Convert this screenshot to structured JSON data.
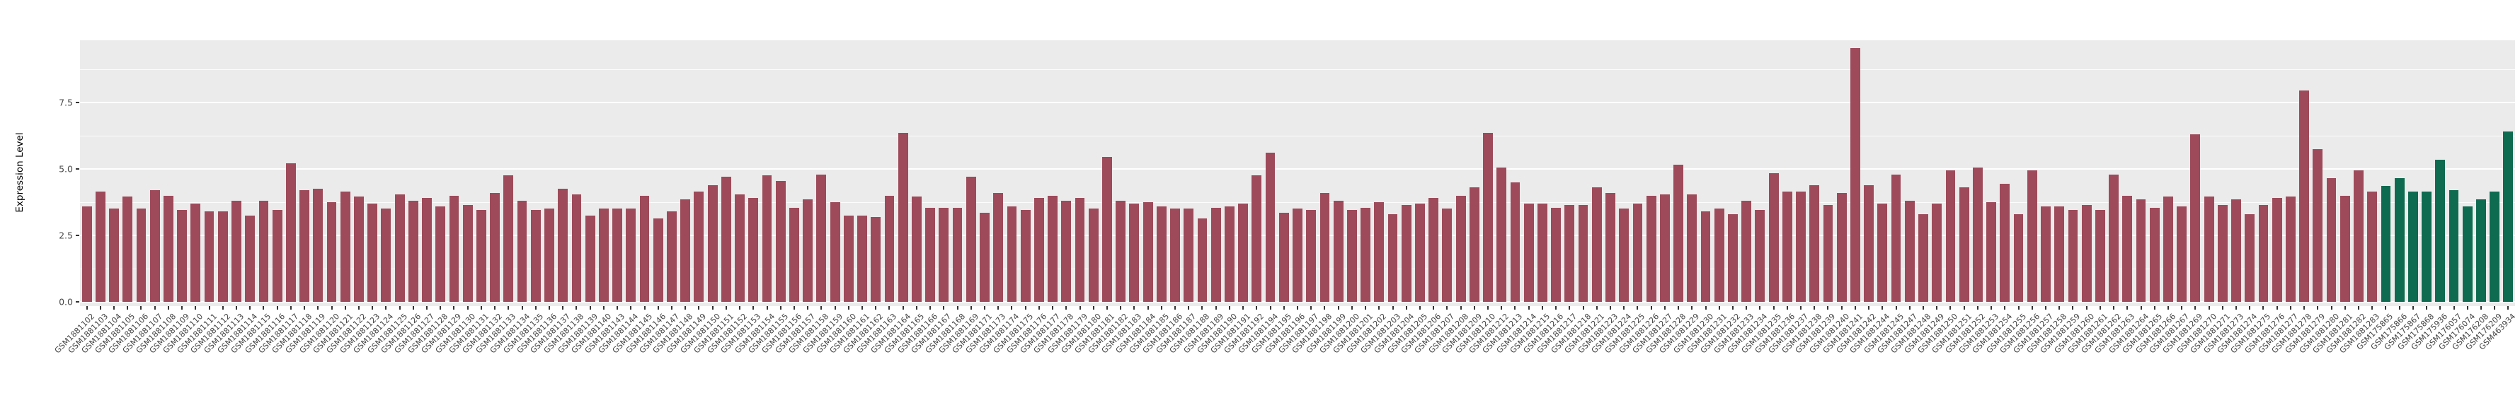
{
  "chart_data": {
    "type": "bar",
    "title": "",
    "xlabel": "",
    "ylabel": "Expression Level",
    "yticks": [
      "0.0",
      "2.5",
      "5.0",
      "7.5"
    ],
    "ytick_values": [
      0,
      2.5,
      5,
      7.5
    ],
    "minor_gridline_values": [
      1.25,
      3.75,
      6.25,
      8.75
    ],
    "ylim": [
      0,
      9.85
    ],
    "grid": "on",
    "legend_position": "none",
    "panel_background": "#EBEBEB",
    "gridline_color": "#ffffff",
    "group_colors": {
      "groupA": "#9E4A5A",
      "groupB": "#0F6B50"
    },
    "bars": [
      {
        "id": "GSM1881102",
        "v": 3.6,
        "g": "groupA"
      },
      {
        "id": "GSM1881103",
        "v": 4.15,
        "g": "groupA"
      },
      {
        "id": "GSM1881104",
        "v": 3.5,
        "g": "groupA"
      },
      {
        "id": "GSM1881105",
        "v": 3.95,
        "g": "groupA"
      },
      {
        "id": "GSM1881106",
        "v": 3.5,
        "g": "groupA"
      },
      {
        "id": "GSM1881107",
        "v": 4.2,
        "g": "groupA"
      },
      {
        "id": "GSM1881108",
        "v": 4.0,
        "g": "groupA"
      },
      {
        "id": "GSM1881109",
        "v": 3.45,
        "g": "groupA"
      },
      {
        "id": "GSM1881110",
        "v": 3.7,
        "g": "groupA"
      },
      {
        "id": "GSM1881111",
        "v": 3.4,
        "g": "groupA"
      },
      {
        "id": "GSM1881112",
        "v": 3.4,
        "g": "groupA"
      },
      {
        "id": "GSM1881113",
        "v": 3.8,
        "g": "groupA"
      },
      {
        "id": "GSM1881114",
        "v": 3.25,
        "g": "groupA"
      },
      {
        "id": "GSM1881115",
        "v": 3.8,
        "g": "groupA"
      },
      {
        "id": "GSM1881116",
        "v": 3.45,
        "g": "groupA"
      },
      {
        "id": "GSM1881117",
        "v": 5.2,
        "g": "groupA"
      },
      {
        "id": "GSM1881118",
        "v": 4.2,
        "g": "groupA"
      },
      {
        "id": "GSM1881119",
        "v": 4.25,
        "g": "groupA"
      },
      {
        "id": "GSM1881120",
        "v": 3.75,
        "g": "groupA"
      },
      {
        "id": "GSM1881121",
        "v": 4.15,
        "g": "groupA"
      },
      {
        "id": "GSM1881122",
        "v": 3.95,
        "g": "groupA"
      },
      {
        "id": "GSM1881123",
        "v": 3.7,
        "g": "groupA"
      },
      {
        "id": "GSM1881124",
        "v": 3.5,
        "g": "groupA"
      },
      {
        "id": "GSM1881125",
        "v": 4.05,
        "g": "groupA"
      },
      {
        "id": "GSM1881126",
        "v": 3.8,
        "g": "groupA"
      },
      {
        "id": "GSM1881127",
        "v": 3.9,
        "g": "groupA"
      },
      {
        "id": "GSM1881128",
        "v": 3.6,
        "g": "groupA"
      },
      {
        "id": "GSM1881129",
        "v": 4.0,
        "g": "groupA"
      },
      {
        "id": "GSM1881130",
        "v": 3.65,
        "g": "groupA"
      },
      {
        "id": "GSM1881131",
        "v": 3.45,
        "g": "groupA"
      },
      {
        "id": "GSM1881132",
        "v": 4.1,
        "g": "groupA"
      },
      {
        "id": "GSM1881133",
        "v": 4.75,
        "g": "groupA"
      },
      {
        "id": "GSM1881134",
        "v": 3.8,
        "g": "groupA"
      },
      {
        "id": "GSM1881135",
        "v": 3.45,
        "g": "groupA"
      },
      {
        "id": "GSM1881136",
        "v": 3.5,
        "g": "groupA"
      },
      {
        "id": "GSM1881137",
        "v": 4.25,
        "g": "groupA"
      },
      {
        "id": "GSM1881138",
        "v": 4.05,
        "g": "groupA"
      },
      {
        "id": "GSM1881139",
        "v": 3.25,
        "g": "groupA"
      },
      {
        "id": "GSM1881140",
        "v": 3.5,
        "g": "groupA"
      },
      {
        "id": "GSM1881143",
        "v": 3.5,
        "g": "groupA"
      },
      {
        "id": "GSM1881144",
        "v": 3.5,
        "g": "groupA"
      },
      {
        "id": "GSM1881145",
        "v": 4.0,
        "g": "groupA"
      },
      {
        "id": "GSM1881146",
        "v": 3.15,
        "g": "groupA"
      },
      {
        "id": "GSM1881147",
        "v": 3.4,
        "g": "groupA"
      },
      {
        "id": "GSM1881148",
        "v": 3.85,
        "g": "groupA"
      },
      {
        "id": "GSM1881149",
        "v": 4.15,
        "g": "groupA"
      },
      {
        "id": "GSM1881150",
        "v": 4.4,
        "g": "groupA"
      },
      {
        "id": "GSM1881151",
        "v": 4.7,
        "g": "groupA"
      },
      {
        "id": "GSM1881152",
        "v": 4.05,
        "g": "groupA"
      },
      {
        "id": "GSM1881153",
        "v": 3.9,
        "g": "groupA"
      },
      {
        "id": "GSM1881154",
        "v": 4.75,
        "g": "groupA"
      },
      {
        "id": "GSM1881155",
        "v": 4.55,
        "g": "groupA"
      },
      {
        "id": "GSM1881156",
        "v": 3.55,
        "g": "groupA"
      },
      {
        "id": "GSM1881157",
        "v": 3.85,
        "g": "groupA"
      },
      {
        "id": "GSM1881158",
        "v": 4.8,
        "g": "groupA"
      },
      {
        "id": "GSM1881159",
        "v": 3.75,
        "g": "groupA"
      },
      {
        "id": "GSM1881160",
        "v": 3.25,
        "g": "groupA"
      },
      {
        "id": "GSM1881161",
        "v": 3.25,
        "g": "groupA"
      },
      {
        "id": "GSM1881162",
        "v": 3.2,
        "g": "groupA"
      },
      {
        "id": "GSM1881163",
        "v": 4.0,
        "g": "groupA"
      },
      {
        "id": "GSM1881164",
        "v": 6.35,
        "g": "groupA"
      },
      {
        "id": "GSM1881165",
        "v": 3.95,
        "g": "groupA"
      },
      {
        "id": "GSM1881166",
        "v": 3.55,
        "g": "groupA"
      },
      {
        "id": "GSM1881167",
        "v": 3.55,
        "g": "groupA"
      },
      {
        "id": "GSM1881168",
        "v": 3.55,
        "g": "groupA"
      },
      {
        "id": "GSM1881169",
        "v": 4.7,
        "g": "groupA"
      },
      {
        "id": "GSM1881171",
        "v": 3.35,
        "g": "groupA"
      },
      {
        "id": "GSM1881173",
        "v": 4.1,
        "g": "groupA"
      },
      {
        "id": "GSM1881174",
        "v": 3.6,
        "g": "groupA"
      },
      {
        "id": "GSM1881175",
        "v": 3.45,
        "g": "groupA"
      },
      {
        "id": "GSM1881176",
        "v": 3.9,
        "g": "groupA"
      },
      {
        "id": "GSM1881177",
        "v": 4.0,
        "g": "groupA"
      },
      {
        "id": "GSM1881178",
        "v": 3.8,
        "g": "groupA"
      },
      {
        "id": "GSM1881179",
        "v": 3.9,
        "g": "groupA"
      },
      {
        "id": "GSM1881180",
        "v": 3.5,
        "g": "groupA"
      },
      {
        "id": "GSM1881181",
        "v": 5.45,
        "g": "groupA"
      },
      {
        "id": "GSM1881182",
        "v": 3.8,
        "g": "groupA"
      },
      {
        "id": "GSM1881183",
        "v": 3.7,
        "g": "groupA"
      },
      {
        "id": "GSM1881184",
        "v": 3.75,
        "g": "groupA"
      },
      {
        "id": "GSM1881185",
        "v": 3.6,
        "g": "groupA"
      },
      {
        "id": "GSM1881186",
        "v": 3.5,
        "g": "groupA"
      },
      {
        "id": "GSM1881187",
        "v": 3.5,
        "g": "groupA"
      },
      {
        "id": "GSM1881188",
        "v": 3.15,
        "g": "groupA"
      },
      {
        "id": "GSM1881189",
        "v": 3.55,
        "g": "groupA"
      },
      {
        "id": "GSM1881190",
        "v": 3.6,
        "g": "groupA"
      },
      {
        "id": "GSM1881191",
        "v": 3.7,
        "g": "groupA"
      },
      {
        "id": "GSM1881192",
        "v": 4.75,
        "g": "groupA"
      },
      {
        "id": "GSM1881194",
        "v": 5.6,
        "g": "groupA"
      },
      {
        "id": "GSM1881195",
        "v": 3.35,
        "g": "groupA"
      },
      {
        "id": "GSM1881196",
        "v": 3.5,
        "g": "groupA"
      },
      {
        "id": "GSM1881197",
        "v": 3.45,
        "g": "groupA"
      },
      {
        "id": "GSM1881198",
        "v": 4.1,
        "g": "groupA"
      },
      {
        "id": "GSM1881199",
        "v": 3.8,
        "g": "groupA"
      },
      {
        "id": "GSM1881200",
        "v": 3.45,
        "g": "groupA"
      },
      {
        "id": "GSM1881201",
        "v": 3.55,
        "g": "groupA"
      },
      {
        "id": "GSM1881202",
        "v": 3.75,
        "g": "groupA"
      },
      {
        "id": "GSM1881203",
        "v": 3.3,
        "g": "groupA"
      },
      {
        "id": "GSM1881204",
        "v": 3.65,
        "g": "groupA"
      },
      {
        "id": "GSM1881205",
        "v": 3.7,
        "g": "groupA"
      },
      {
        "id": "GSM1881206",
        "v": 3.9,
        "g": "groupA"
      },
      {
        "id": "GSM1881207",
        "v": 3.5,
        "g": "groupA"
      },
      {
        "id": "GSM1881208",
        "v": 4.0,
        "g": "groupA"
      },
      {
        "id": "GSM1881209",
        "v": 4.3,
        "g": "groupA"
      },
      {
        "id": "GSM1881210",
        "v": 6.35,
        "g": "groupA"
      },
      {
        "id": "GSM1881212",
        "v": 5.05,
        "g": "groupA"
      },
      {
        "id": "GSM1881213",
        "v": 4.5,
        "g": "groupA"
      },
      {
        "id": "GSM1881214",
        "v": 3.7,
        "g": "groupA"
      },
      {
        "id": "GSM1881215",
        "v": 3.7,
        "g": "groupA"
      },
      {
        "id": "GSM1881216",
        "v": 3.55,
        "g": "groupA"
      },
      {
        "id": "GSM1881217",
        "v": 3.65,
        "g": "groupA"
      },
      {
        "id": "GSM1881218",
        "v": 3.65,
        "g": "groupA"
      },
      {
        "id": "GSM1881221",
        "v": 4.3,
        "g": "groupA"
      },
      {
        "id": "GSM1881223",
        "v": 4.1,
        "g": "groupA"
      },
      {
        "id": "GSM1881224",
        "v": 3.5,
        "g": "groupA"
      },
      {
        "id": "GSM1881225",
        "v": 3.7,
        "g": "groupA"
      },
      {
        "id": "GSM1881226",
        "v": 4.0,
        "g": "groupA"
      },
      {
        "id": "GSM1881227",
        "v": 4.05,
        "g": "groupA"
      },
      {
        "id": "GSM1881228",
        "v": 5.15,
        "g": "groupA"
      },
      {
        "id": "GSM1881229",
        "v": 4.05,
        "g": "groupA"
      },
      {
        "id": "GSM1881230",
        "v": 3.4,
        "g": "groupA"
      },
      {
        "id": "GSM1881231",
        "v": 3.5,
        "g": "groupA"
      },
      {
        "id": "GSM1881232",
        "v": 3.3,
        "g": "groupA"
      },
      {
        "id": "GSM1881233",
        "v": 3.8,
        "g": "groupA"
      },
      {
        "id": "GSM1881234",
        "v": 3.45,
        "g": "groupA"
      },
      {
        "id": "GSM1881235",
        "v": 4.85,
        "g": "groupA"
      },
      {
        "id": "GSM1881236",
        "v": 4.15,
        "g": "groupA"
      },
      {
        "id": "GSM1881237",
        "v": 4.15,
        "g": "groupA"
      },
      {
        "id": "GSM1881238",
        "v": 4.4,
        "g": "groupA"
      },
      {
        "id": "GSM1881239",
        "v": 3.65,
        "g": "groupA"
      },
      {
        "id": "GSM1881240",
        "v": 4.1,
        "g": "groupA"
      },
      {
        "id": "GSM1881241",
        "v": 9.55,
        "g": "groupA"
      },
      {
        "id": "GSM1881242",
        "v": 4.4,
        "g": "groupA"
      },
      {
        "id": "GSM1881244",
        "v": 3.7,
        "g": "groupA"
      },
      {
        "id": "GSM1881245",
        "v": 4.8,
        "g": "groupA"
      },
      {
        "id": "GSM1881247",
        "v": 3.8,
        "g": "groupA"
      },
      {
        "id": "GSM1881248",
        "v": 3.3,
        "g": "groupA"
      },
      {
        "id": "GSM1881249",
        "v": 3.7,
        "g": "groupA"
      },
      {
        "id": "GSM1881250",
        "v": 4.95,
        "g": "groupA"
      },
      {
        "id": "GSM1881251",
        "v": 4.3,
        "g": "groupA"
      },
      {
        "id": "GSM1881252",
        "v": 5.05,
        "g": "groupA"
      },
      {
        "id": "GSM1881253",
        "v": 3.75,
        "g": "groupA"
      },
      {
        "id": "GSM1881254",
        "v": 4.45,
        "g": "groupA"
      },
      {
        "id": "GSM1881255",
        "v": 3.3,
        "g": "groupA"
      },
      {
        "id": "GSM1881256",
        "v": 4.95,
        "g": "groupA"
      },
      {
        "id": "GSM1881257",
        "v": 3.6,
        "g": "groupA"
      },
      {
        "id": "GSM1881258",
        "v": 3.6,
        "g": "groupA"
      },
      {
        "id": "GSM1881259",
        "v": 3.45,
        "g": "groupA"
      },
      {
        "id": "GSM1881260",
        "v": 3.65,
        "g": "groupA"
      },
      {
        "id": "GSM1881261",
        "v": 3.45,
        "g": "groupA"
      },
      {
        "id": "GSM1881262",
        "v": 4.8,
        "g": "groupA"
      },
      {
        "id": "GSM1881263",
        "v": 4.0,
        "g": "groupA"
      },
      {
        "id": "GSM1881264",
        "v": 3.85,
        "g": "groupA"
      },
      {
        "id": "GSM1881265",
        "v": 3.55,
        "g": "groupA"
      },
      {
        "id": "GSM1881266",
        "v": 3.95,
        "g": "groupA"
      },
      {
        "id": "GSM1881267",
        "v": 3.6,
        "g": "groupA"
      },
      {
        "id": "GSM1881269",
        "v": 6.3,
        "g": "groupA"
      },
      {
        "id": "GSM1881270",
        "v": 3.95,
        "g": "groupA"
      },
      {
        "id": "GSM1881271",
        "v": 3.65,
        "g": "groupA"
      },
      {
        "id": "GSM1881273",
        "v": 3.85,
        "g": "groupA"
      },
      {
        "id": "GSM1881274",
        "v": 3.3,
        "g": "groupA"
      },
      {
        "id": "GSM1881275",
        "v": 3.65,
        "g": "groupA"
      },
      {
        "id": "GSM1881276",
        "v": 3.9,
        "g": "groupA"
      },
      {
        "id": "GSM1881277",
        "v": 3.95,
        "g": "groupA"
      },
      {
        "id": "GSM1881278",
        "v": 7.95,
        "g": "groupA"
      },
      {
        "id": "GSM1881279",
        "v": 5.75,
        "g": "groupA"
      },
      {
        "id": "GSM1881280",
        "v": 4.65,
        "g": "groupA"
      },
      {
        "id": "GSM1881281",
        "v": 4.0,
        "g": "groupA"
      },
      {
        "id": "GSM1881282",
        "v": 4.95,
        "g": "groupA"
      },
      {
        "id": "GSM1881283",
        "v": 4.15,
        "g": "groupA"
      },
      {
        "id": "GSM175865",
        "v": 4.35,
        "g": "groupB"
      },
      {
        "id": "GSM175866",
        "v": 4.65,
        "g": "groupB"
      },
      {
        "id": "GSM175867",
        "v": 4.15,
        "g": "groupB"
      },
      {
        "id": "GSM175868",
        "v": 4.15,
        "g": "groupB"
      },
      {
        "id": "GSM175936",
        "v": 5.35,
        "g": "groupB"
      },
      {
        "id": "GSM176057",
        "v": 4.2,
        "g": "groupB"
      },
      {
        "id": "GSM176074",
        "v": 3.6,
        "g": "groupB"
      },
      {
        "id": "GSM176208",
        "v": 3.85,
        "g": "groupB"
      },
      {
        "id": "GSM176209",
        "v": 4.15,
        "g": "groupB"
      },
      {
        "id": "GSM463934",
        "v": 6.4,
        "g": "groupB"
      }
    ]
  }
}
